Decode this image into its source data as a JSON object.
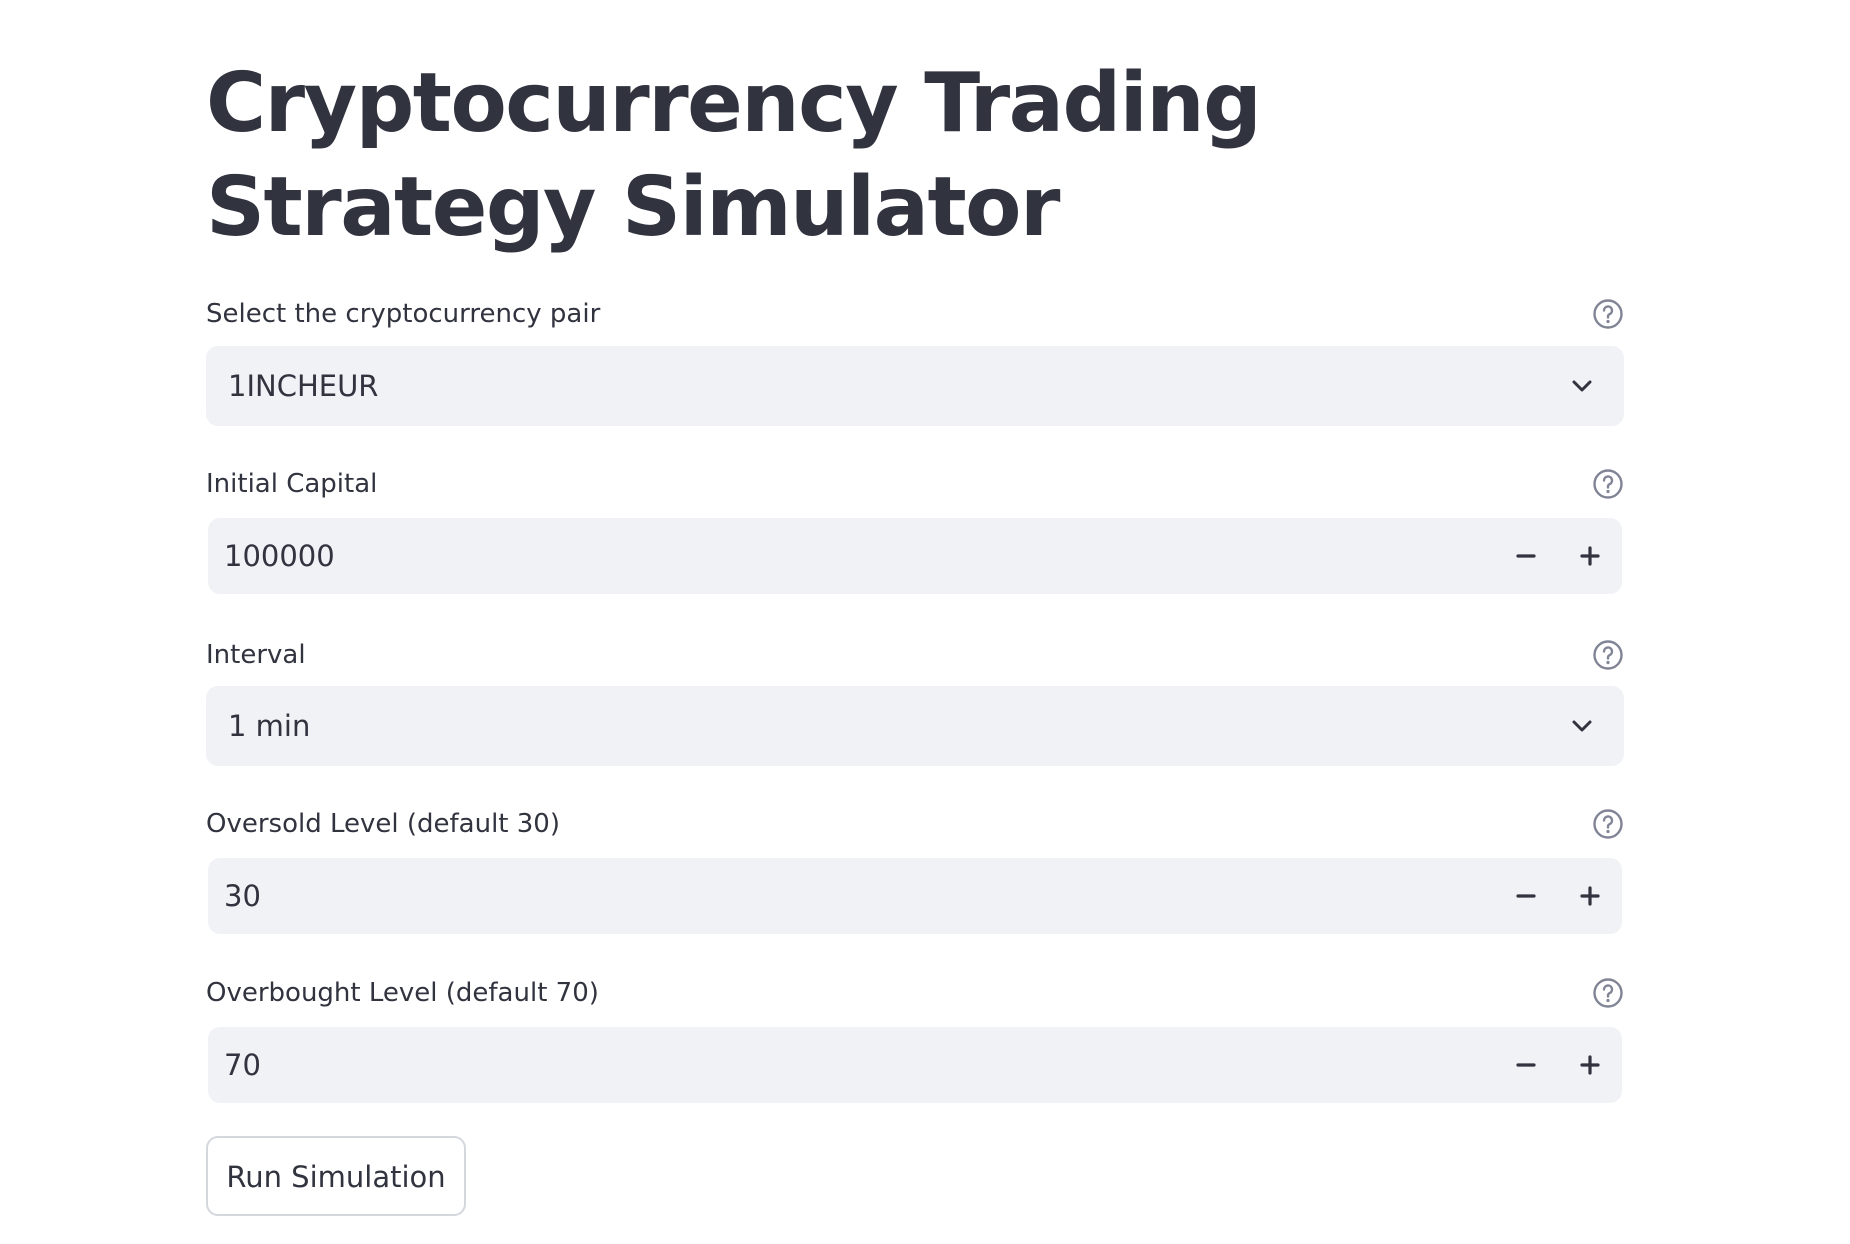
{
  "page": {
    "title": "Cryptocurrency Trading Strategy Simulator"
  },
  "fields": {
    "pair": {
      "label": "Select the cryptocurrency pair",
      "value": "1INCHEUR"
    },
    "capital": {
      "label": "Initial Capital",
      "value": "100000"
    },
    "interval": {
      "label": "Interval",
      "value": "1 min"
    },
    "oversold": {
      "label": "Oversold Level (default 30)",
      "value": "30"
    },
    "overbought": {
      "label": "Overbought Level (default 70)",
      "value": "70"
    }
  },
  "actions": {
    "run_label": "Run Simulation"
  },
  "icons": {
    "help": "help-circle-icon",
    "dropdown": "chevron-down-icon",
    "decrement": "minus-icon",
    "increment": "plus-icon"
  },
  "colors": {
    "text": "#31333f",
    "input_bg": "#f0f2f6",
    "icon_gray": "#808495",
    "button_border": "#d5d7de"
  }
}
